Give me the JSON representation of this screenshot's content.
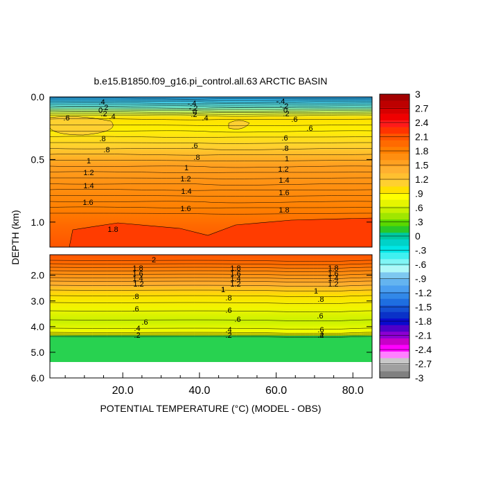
{
  "chart_data": {
    "type": "heatmap",
    "title": "b.e15.B1850.f09_g16.pi_control.all.63 ARCTIC BASIN",
    "xlabel": "POTENTIAL TEMPERATURE (°C) (MODEL - OBS)",
    "ylabel": "DEPTH (km)",
    "x_ticks": [
      "20.0",
      "40.0",
      "60.0",
      "80.0"
    ],
    "upper_panel": {
      "ylim": [
        0.0,
        1.2
      ],
      "y_ticks": [
        "0.0",
        "0.5",
        "1.0"
      ]
    },
    "lower_panel": {
      "ylim": [
        1.2,
        6.0
      ],
      "y_ticks": [
        "2.0",
        "3.0",
        "4.0",
        "5.0",
        "6.0"
      ]
    },
    "colorbar": {
      "ticks": [
        "3",
        "2.7",
        "2.4",
        "2.1",
        "1.8",
        "1.5",
        "1.2",
        ".9",
        ".6",
        ".3",
        "0",
        "-.3",
        "-.6",
        "-.9",
        "-1.2",
        "-1.5",
        "-1.8",
        "-2.1",
        "-2.4",
        "-2.7",
        "-3"
      ],
      "colors": [
        "#a30000",
        "#bd0000",
        "#d70000",
        "#f00000",
        "#ff1a1a",
        "#ff3300",
        "#ff5500",
        "#ff6a00",
        "#ff7f00",
        "#ff8f10",
        "#ffa020",
        "#ffb030",
        "#ffc030",
        "#ffd030",
        "#ffe000",
        "#ffff00",
        "#e6f500",
        "#c8f000",
        "#a0e600",
        "#5ad700",
        "#28c828",
        "#00c8a0",
        "#00d2c8",
        "#00e6e6",
        "#40f0f0",
        "#80f5f5",
        "#b0f8f8",
        "#7dc8f0",
        "#64b4f0",
        "#4a9ef0",
        "#3288e8",
        "#1e6ee0",
        "#1450d2",
        "#0a32c8",
        "#0a0acd",
        "#5000c8",
        "#8c00d2",
        "#c800c8",
        "#ff00ff",
        "#ff80ff",
        "#c8c8c8",
        "#a0a0a0",
        "#808080"
      ]
    },
    "contour_labels_upper": [
      ".4",
      "-.2",
      "0",
      ".2",
      ".4",
      ".6",
      ".8",
      ".8",
      "1",
      "1.2",
      "1.4",
      "1.6",
      "1.8",
      "2",
      "-.4",
      "-.2",
      "0",
      ".2",
      ".4",
      ".6",
      ".8",
      "1",
      "1.2",
      "1.4",
      "1.6",
      "1.8",
      ".6",
      ".8",
      "1",
      "1.2",
      "1.4",
      "1.6",
      "1.8"
    ],
    "contour_labels_lower": [
      "2",
      "1.8",
      "1.6",
      "1.4",
      "1.2",
      "1",
      ".8",
      ".6",
      ".6",
      ".4",
      ".2",
      "1.8",
      "1.6",
      "1.4",
      "1.2",
      "1",
      ".8",
      ".6",
      ".6",
      ".4",
      ".2",
      "1.8",
      "1.6",
      "1.4",
      "1.2",
      "1",
      ".8",
      ".6",
      ".6",
      ".4",
      ".2"
    ]
  }
}
